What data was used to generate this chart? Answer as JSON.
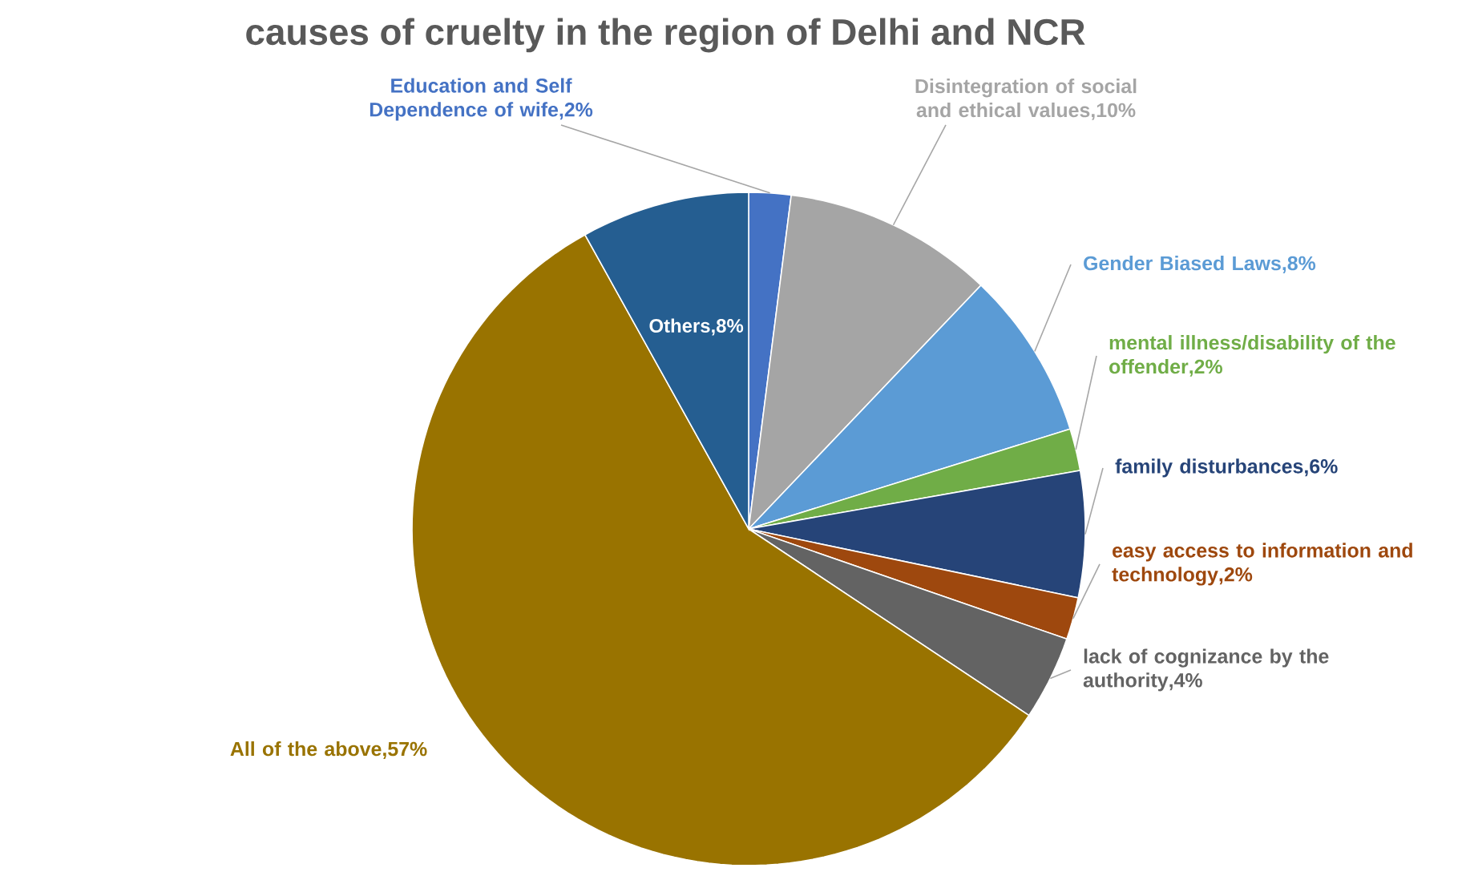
{
  "chart_data": {
    "type": "pie",
    "title": "causes of cruelty in the region of Delhi and NCR",
    "categories": [
      "Education and Self Dependence of wife",
      "Disintegration of social and ethical values",
      "Gender Biased Laws",
      "mental illness/disability of the offender",
      "family disturbances",
      "easy access to information and technology",
      "lack of cognizance by the authority",
      "All of the above",
      "Others"
    ],
    "values": [
      2,
      10,
      8,
      2,
      6,
      2,
      4,
      57,
      8
    ],
    "value_labels": [
      ",2%",
      ",10%",
      ",8%",
      ",2%",
      ",6%",
      ",2%",
      ",4%",
      ",57%",
      ",8%"
    ],
    "colors": [
      "#4472c4",
      "#a5a5a5",
      "#5b9bd5",
      "#70ad47",
      "#264478",
      "#9e480e",
      "#636363",
      "#997300",
      "#255e91"
    ]
  }
}
